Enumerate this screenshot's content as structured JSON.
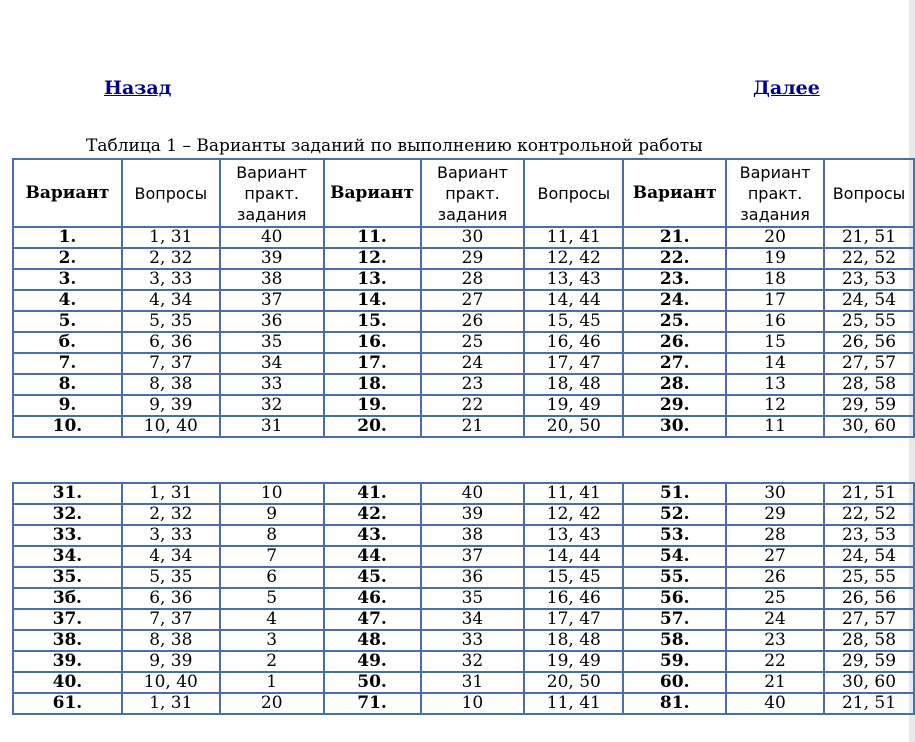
{
  "nav": {
    "back": "Назад",
    "next": "Далее"
  },
  "caption": "Таблица 1 – Варианты заданий по выполнению контрольной работы",
  "headers": [
    "Вариант",
    "Вопросы",
    "Вариант практ. задания",
    "Вариант",
    "Вариант практ. задания",
    "Вопросы",
    "Вариант",
    "Вариант практ. задания",
    "Вопросы"
  ],
  "table1": [
    [
      "1.",
      "1, 31",
      "40",
      "11.",
      "30",
      "11, 41",
      "21.",
      "20",
      "21, 51"
    ],
    [
      "2.",
      "2, 32",
      "39",
      "12.",
      "29",
      "12, 42",
      "22.",
      "19",
      "22, 52"
    ],
    [
      "3.",
      "3, 33",
      "38",
      "13.",
      "28",
      "13, 43",
      "23.",
      "18",
      "23, 53"
    ],
    [
      "4.",
      "4, 34",
      "37",
      "14.",
      "27",
      "14, 44",
      "24.",
      "17",
      "24, 54"
    ],
    [
      "5.",
      "5, 35",
      "36",
      "15.",
      "26",
      "15, 45",
      "25.",
      "16",
      "25, 55"
    ],
    [
      "б.",
      "6, 36",
      "35",
      "16.",
      "25",
      "16, 46",
      "26.",
      "15",
      "26, 56"
    ],
    [
      "7.",
      "7, 37",
      "34",
      "17.",
      "24",
      "17, 47",
      "27.",
      "14",
      "27, 57"
    ],
    [
      "8.",
      "8, 38",
      "33",
      "18.",
      "23",
      "18, 48",
      "28.",
      "13",
      "28, 58"
    ],
    [
      "9.",
      "9, 39",
      "32",
      "19.",
      "22",
      "19, 49",
      "29.",
      "12",
      "29, 59"
    ],
    [
      "10.",
      "10, 40",
      "31",
      "20.",
      "21",
      "20, 50",
      "30.",
      "11",
      "30, 60"
    ]
  ],
  "table2": [
    [
      "31.",
      "1, 31",
      "10",
      "41.",
      "40",
      "11, 41",
      "51.",
      "30",
      "21, 51"
    ],
    [
      "32.",
      "2, 32",
      "9",
      "42.",
      "39",
      "12, 42",
      "52.",
      "29",
      "22, 52"
    ],
    [
      "33.",
      "3, 33",
      "8",
      "43.",
      "38",
      "13, 43",
      "53.",
      "28",
      "23, 53"
    ],
    [
      "34.",
      "4, 34",
      "7",
      "44.",
      "37",
      "14, 44",
      "54.",
      "27",
      "24, 54"
    ],
    [
      "35.",
      "5, 35",
      "6",
      "45.",
      "36",
      "15, 45",
      "55.",
      "26",
      "25, 55"
    ],
    [
      "3б.",
      "6, 36",
      "5",
      "46.",
      "35",
      "16, 46",
      "56.",
      "25",
      "26, 56"
    ],
    [
      "37.",
      "7, 37",
      "4",
      "47.",
      "34",
      "17, 47",
      "57.",
      "24",
      "27, 57"
    ],
    [
      "38.",
      "8, 38",
      "3",
      "48.",
      "33",
      "18, 48",
      "58.",
      "23",
      "28, 58"
    ],
    [
      "39.",
      "9, 39",
      "2",
      "49.",
      "32",
      "19, 49",
      "59.",
      "22",
      "29, 59"
    ],
    [
      "40.",
      "10, 40",
      "1",
      "50.",
      "31",
      "20, 50",
      "60.",
      "21",
      "30, 60"
    ],
    [
      "61.",
      "1, 31",
      "20",
      "71.",
      "10",
      "11, 41",
      "81.",
      "40",
      "21, 51"
    ]
  ]
}
